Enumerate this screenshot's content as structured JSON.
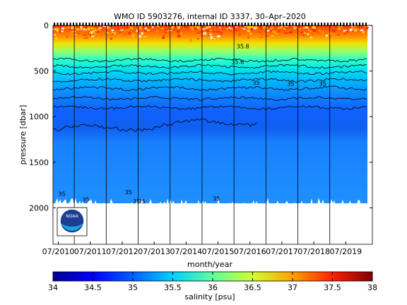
{
  "chart_data": {
    "type": "heatmap",
    "title": "WMO ID 5903276, internal ID 3337, 30–Apr–2020",
    "xlabel": "month/year",
    "ylabel": "pressure [dbar]",
    "x_tick_labels": [
      "07/2010",
      "07/2011",
      "07/2012",
      "07/2013",
      "07/2014",
      "07/2015",
      "07/2016",
      "07/2017",
      "07/2018",
      "07/2019"
    ],
    "y_ticks": [
      0,
      500,
      1000,
      1500,
      2000
    ],
    "ylim": [
      2400,
      0
    ],
    "xlim": [
      "2010-05",
      "2020-05"
    ],
    "colorbar": {
      "label": "salinity [psu]",
      "range": [
        34,
        38
      ],
      "ticks": [
        "34",
        "34.5",
        "35",
        "35.5",
        "36",
        "36.5",
        "37",
        "37.5",
        "38"
      ],
      "colors": [
        "#00008f",
        "#0000ff",
        "#0080ff",
        "#00ffff",
        "#80ff80",
        "#ffff00",
        "#ff8000",
        "#ff0000",
        "#800000"
      ]
    },
    "contour_labels": [
      "35.8",
      "35.6",
      "35",
      "35",
      "35",
      "35",
      "35",
      "35",
      "35",
      "35",
      "35"
    ],
    "year_markers": [
      "2011",
      "2012",
      "2013",
      "2014",
      "2015",
      "2016",
      "2017",
      "2018",
      "2019"
    ],
    "profile_max_pressure": 1950,
    "logo_text": "NOAA"
  }
}
